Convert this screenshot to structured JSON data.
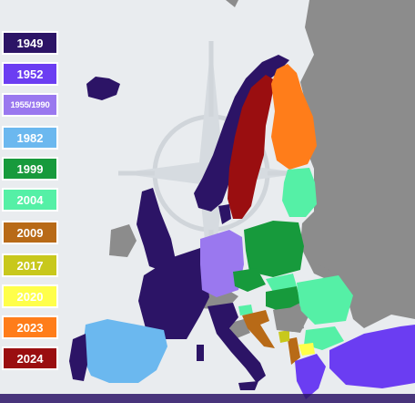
{
  "colors": {
    "sea": "#e9ecef",
    "emblem": "#d4d9de",
    "non_member": "#8c8c8c",
    "legend_border": "#ffffff"
  },
  "legend": [
    {
      "label": "1949",
      "color": "#2c1466"
    },
    {
      "label": "1952",
      "color": "#6b3df2"
    },
    {
      "label": "1955/1990",
      "color": "#9a78ef"
    },
    {
      "label": "1982",
      "color": "#6bb8ef"
    },
    {
      "label": "1999",
      "color": "#179a3c"
    },
    {
      "label": "2004",
      "color": "#55f0a6"
    },
    {
      "label": "2009",
      "color": "#b86a17"
    },
    {
      "label": "2017",
      "color": "#c8c81c"
    },
    {
      "label": "2020",
      "color": "#ffff4a"
    },
    {
      "label": "2023",
      "color": "#ff7d1a"
    },
    {
      "label": "2024",
      "color": "#9a0e10"
    }
  ]
}
